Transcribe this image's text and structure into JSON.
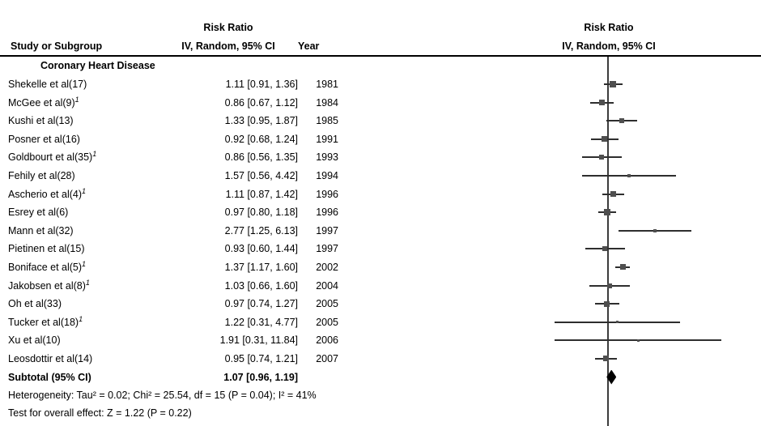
{
  "headers": {
    "study_col": "Study or Subgroup",
    "effect_col_title": "Risk Ratio",
    "effect_col_sub": "IV, Random, 95% CI",
    "year_col": "Year",
    "plot_title": "Risk Ratio",
    "plot_sub": "IV, Random, 95% CI"
  },
  "colors": {
    "background": "#ffffff",
    "text": "#000000",
    "header_rule": "#000000",
    "axis_line": "#3c3c3c",
    "ci_line": "#2e2e2e",
    "marker": "#4f4f4f",
    "diamond": "#000000"
  },
  "chart_data": {
    "type": "forest",
    "x_scale": "log",
    "null_line_value": 1,
    "effect_measure": "Risk Ratio",
    "model": "IV, Random, 95% CI",
    "subgroup_label": "Coronary Heart Disease",
    "studies": [
      {
        "name": "Shekelle et al(17)",
        "footnote": null,
        "estimate": 1.11,
        "ci_low": 0.91,
        "ci_high": 1.36,
        "year": 1981,
        "marker_size": 8
      },
      {
        "name": "McGee et al(9)",
        "footnote": "1",
        "estimate": 0.86,
        "ci_low": 0.67,
        "ci_high": 1.12,
        "year": 1984,
        "marker_size": 7
      },
      {
        "name": "Kushi et al(13)",
        "footnote": null,
        "estimate": 1.33,
        "ci_low": 0.95,
        "ci_high": 1.87,
        "year": 1985,
        "marker_size": 6
      },
      {
        "name": "Posner et al(16)",
        "footnote": null,
        "estimate": 0.92,
        "ci_low": 0.68,
        "ci_high": 1.24,
        "year": 1991,
        "marker_size": 7
      },
      {
        "name": "Goldbourt et al(35)",
        "footnote": "1",
        "estimate": 0.86,
        "ci_low": 0.56,
        "ci_high": 1.35,
        "year": 1993,
        "marker_size": 6
      },
      {
        "name": "Fehily et al(28)",
        "footnote": null,
        "estimate": 1.57,
        "ci_low": 0.56,
        "ci_high": 4.42,
        "year": 1994,
        "marker_size": 4
      },
      {
        "name": "Ascherio et al(4)",
        "footnote": "1",
        "estimate": 1.11,
        "ci_low": 0.87,
        "ci_high": 1.42,
        "year": 1996,
        "marker_size": 7
      },
      {
        "name": "Esrey et al(6)",
        "footnote": null,
        "estimate": 0.97,
        "ci_low": 0.8,
        "ci_high": 1.18,
        "year": 1996,
        "marker_size": 8
      },
      {
        "name": "Mann et al(32)",
        "footnote": null,
        "estimate": 2.77,
        "ci_low": 1.25,
        "ci_high": 6.13,
        "year": 1997,
        "marker_size": 4
      },
      {
        "name": "Pietinen et al(15)",
        "footnote": null,
        "estimate": 0.93,
        "ci_low": 0.6,
        "ci_high": 1.44,
        "year": 1997,
        "marker_size": 6
      },
      {
        "name": "Boniface et al(5)",
        "footnote": "1",
        "estimate": 1.37,
        "ci_low": 1.17,
        "ci_high": 1.6,
        "year": 2002,
        "marker_size": 7
      },
      {
        "name": "Jakobsen et al(8)",
        "footnote": "1",
        "estimate": 1.03,
        "ci_low": 0.66,
        "ci_high": 1.6,
        "year": 2004,
        "marker_size": 6
      },
      {
        "name": "Oh et al(33)",
        "footnote": null,
        "estimate": 0.97,
        "ci_low": 0.74,
        "ci_high": 1.27,
        "year": 2005,
        "marker_size": 7
      },
      {
        "name": "Tucker et al(18)",
        "footnote": "1",
        "estimate": 1.22,
        "ci_low": 0.31,
        "ci_high": 4.77,
        "year": 2005,
        "marker_size": 3
      },
      {
        "name": "Xu et al(10)",
        "footnote": null,
        "estimate": 1.91,
        "ci_low": 0.31,
        "ci_high": 11.84,
        "year": 2006,
        "marker_size": 3
      },
      {
        "name": "Leosdottir et al(14)",
        "footnote": null,
        "estimate": 0.95,
        "ci_low": 0.74,
        "ci_high": 1.21,
        "year": 2007,
        "marker_size": 7
      }
    ],
    "subtotal": {
      "label": "Subtotal (95% CI)",
      "estimate": 1.07,
      "ci_low": 0.96,
      "ci_high": 1.19
    },
    "heterogeneity": "Heterogeneity: Tau² = 0.02; Chi² = 25.54, df = 15 (P = 0.04); I² = 41%",
    "overall_effect": "Test for overall effect: Z = 1.22 (P = 0.22)"
  }
}
